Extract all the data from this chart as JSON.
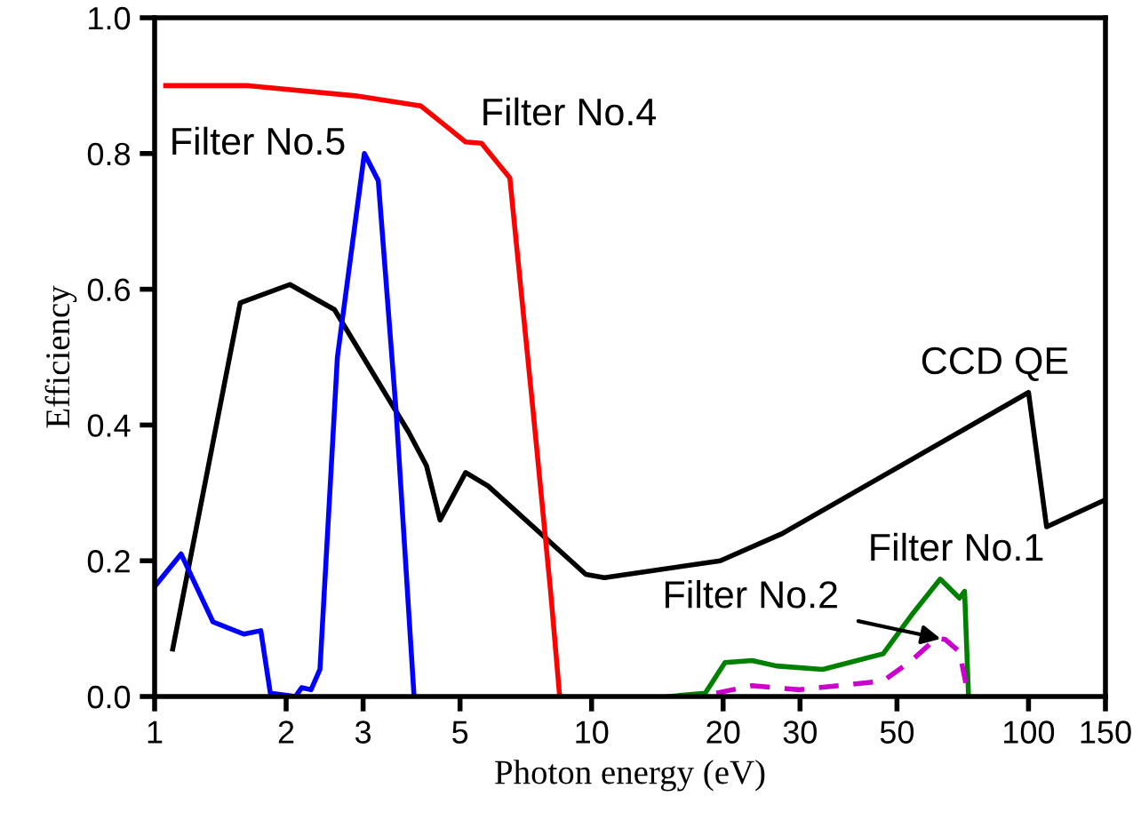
{
  "chart_data": {
    "type": "line",
    "xlabel": "Photon energy (eV)",
    "ylabel": "Efficiency",
    "log": "x",
    "xlim": [
      1,
      150
    ],
    "xticks": [
      1,
      2,
      3,
      5,
      10,
      20,
      30,
      50,
      100,
      150
    ],
    "ylim": [
      0,
      1.0
    ],
    "yticks": [
      {
        "value": 0,
        "label": "0.0"
      },
      {
        "value": 0.2,
        "label": "0.2"
      },
      {
        "value": 0.4,
        "label": "0.4"
      },
      {
        "value": 0.6,
        "label": "0.6"
      },
      {
        "value": 0.8,
        "label": "0.8"
      },
      {
        "value": 1.0,
        "label": "1.0"
      }
    ],
    "grid": false,
    "marker": "none",
    "series": [
      {
        "color": "#000000",
        "line_style": "solid",
        "x": [
          1.1,
          1.57,
          2.04,
          2.58,
          3.81,
          4.19,
          4.5,
          5.15,
          5.8,
          9.7,
          10.7,
          19.7,
          27.3,
          47.9,
          100,
          110,
          150
        ],
        "values": [
          0.07,
          0.58,
          0.607,
          0.57,
          0.39,
          0.34,
          0.26,
          0.33,
          0.31,
          0.18,
          0.175,
          0.2,
          0.24,
          0.33,
          0.448,
          0.25,
          0.29
        ]
      },
      {
        "color": "#ff0000",
        "line_style": "solid",
        "x": [
          1.06,
          1.64,
          2.88,
          4.07,
          5.15,
          5.6,
          6.5,
          7.36,
          8.06,
          8.44
        ],
        "values": [
          0.9,
          0.9,
          0.885,
          0.87,
          0.817,
          0.815,
          0.764,
          0.416,
          0.154,
          0.005
        ]
      },
      {
        "color": "#0000ff",
        "line_style": "solid",
        "x": [
          1.0,
          1.15,
          1.36,
          1.6,
          1.75,
          1.84,
          2.1,
          2.17,
          2.28,
          2.39,
          2.62,
          3.02,
          3.25,
          3.57,
          3.92
        ],
        "values": [
          0.162,
          0.21,
          0.11,
          0.092,
          0.097,
          0.005,
          0.0,
          0.013,
          0.01,
          0.04,
          0.5,
          0.8,
          0.76,
          0.42,
          0.005
        ]
      },
      {
        "color": "#008000",
        "line_style": "solid",
        "x": [
          15,
          18.2,
          20.2,
          23.3,
          26.5,
          33.8,
          46.5,
          54,
          62.8,
          69.5,
          71.4,
          72.9
        ],
        "values": [
          0.0,
          0.005,
          0.05,
          0.053,
          0.045,
          0.04,
          0.063,
          0.12,
          0.173,
          0.145,
          0.155,
          0.0
        ]
      },
      {
        "color": "#cc00cc",
        "line_style": "dashed",
        "x": [
          19.3,
          23.3,
          29.9,
          46.5,
          54,
          61.5,
          64.5,
          69.5,
          72.9
        ],
        "values": [
          0.005,
          0.016,
          0.01,
          0.023,
          0.053,
          0.086,
          0.084,
          0.066,
          0.0
        ]
      }
    ],
    "annotations": [
      {
        "text": "Filter No.5",
        "x": 3.02,
        "y": 0.8
      },
      {
        "text": "Filter No.4",
        "x": 5.15,
        "y": 0.817
      },
      {
        "text": "CCD QE",
        "x": 100,
        "y": 0.448
      },
      {
        "text": "Filter No.1",
        "x": 62.8,
        "y": 0.173
      },
      {
        "text": "Filter No.2",
        "x": 63,
        "y": 0.085
      }
    ]
  }
}
